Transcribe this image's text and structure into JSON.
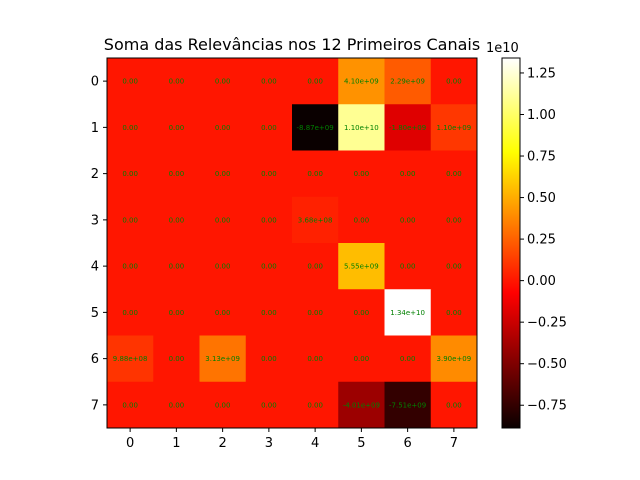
{
  "chart_data": {
    "type": "heatmap",
    "title": "Soma das Relevâncias nos 12 Primeiros Canais",
    "x_ticks": [
      "0",
      "1",
      "2",
      "3",
      "4",
      "5",
      "6",
      "7"
    ],
    "y_ticks": [
      "0",
      "1",
      "2",
      "3",
      "4",
      "5",
      "6",
      "7"
    ],
    "values": [
      [
        0,
        0,
        0,
        0,
        0,
        4100000000.0,
        2290000000.0,
        0
      ],
      [
        0,
        0,
        0,
        0,
        -8870000000.0,
        11000000000.0,
        -1800000000.0,
        1100000000.0
      ],
      [
        0,
        0,
        0,
        0,
        0,
        0,
        0,
        0
      ],
      [
        0,
        0,
        0,
        0,
        368000000.0,
        0,
        0,
        0
      ],
      [
        0,
        0,
        0,
        0,
        0,
        5550000000.0,
        0,
        0
      ],
      [
        0,
        0,
        0,
        0,
        0,
        0,
        13400000000.0,
        0
      ],
      [
        988000000.0,
        0,
        3130000000.0,
        0,
        0,
        0,
        0,
        3900000000.0
      ],
      [
        0,
        0,
        0,
        0,
        0,
        -4010000000.0,
        -7510000000.0,
        0
      ]
    ],
    "cell_labels": [
      [
        "0.00",
        "0.00",
        "0.00",
        "0.00",
        "0.00",
        "4.10e+09",
        "2.29e+09",
        "0.00"
      ],
      [
        "0.00",
        "0.00",
        "0.00",
        "0.00",
        "-8.87e+09",
        "1.10e+10",
        "-1.80e+09",
        "1.10e+09"
      ],
      [
        "0.00",
        "0.00",
        "0.00",
        "0.00",
        "0.00",
        "0.00",
        "0.00",
        "0.00"
      ],
      [
        "0.00",
        "0.00",
        "0.00",
        "0.00",
        "3.68e+08",
        "0.00",
        "0.00",
        "0.00"
      ],
      [
        "0.00",
        "0.00",
        "0.00",
        "0.00",
        "0.00",
        "5.55e+09",
        "0.00",
        "0.00"
      ],
      [
        "0.00",
        "0.00",
        "0.00",
        "0.00",
        "0.00",
        "0.00",
        "1.34e+10",
        "0.00"
      ],
      [
        "9.88e+08",
        "0.00",
        "3.13e+09",
        "0.00",
        "0.00",
        "0.00",
        "0.00",
        "3.90e+09"
      ],
      [
        "0.00",
        "0.00",
        "0.00",
        "0.00",
        "0.00",
        "-4.01e+09",
        "-7.51e+09",
        "0.00"
      ]
    ],
    "colormap": "hot",
    "vmin": -8870000000.0,
    "vmax": 13400000000.0,
    "cell_label_color": "#008000",
    "colorbar": {
      "ticks": [
        -0.75,
        -0.5,
        -0.25,
        0.0,
        0.25,
        0.5,
        0.75,
        1.0,
        1.25
      ],
      "tick_labels": [
        "−0.75",
        "−0.50",
        "−0.25",
        "0.00",
        "0.25",
        "0.50",
        "0.75",
        "1.00",
        "1.25"
      ],
      "offset_text": "1e10",
      "scale": 10000000000.0
    }
  }
}
